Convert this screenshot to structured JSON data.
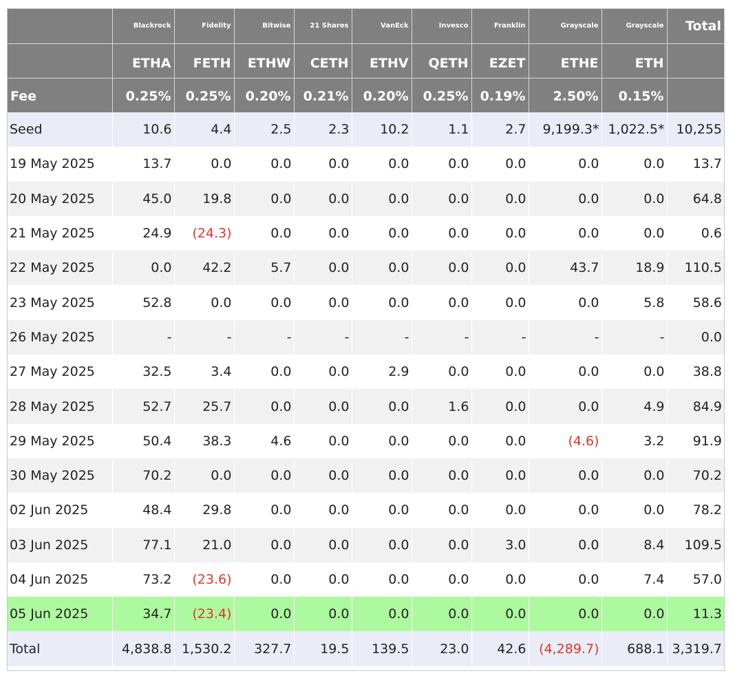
{
  "columns": [
    {
      "provider": "Blackrock",
      "ticker": "ETHA",
      "fee": "0.25%"
    },
    {
      "provider": "Fidelity",
      "ticker": "FETH",
      "fee": "0.25%"
    },
    {
      "provider": "Bitwise",
      "ticker": "ETHW",
      "fee": "0.20%"
    },
    {
      "provider": "21 Shares",
      "ticker": "CETH",
      "fee": "0.21%"
    },
    {
      "provider": "VanEck",
      "ticker": "ETHV",
      "fee": "0.20%"
    },
    {
      "provider": "Invesco",
      "ticker": "QETH",
      "fee": "0.25%"
    },
    {
      "provider": "Franklin",
      "ticker": "EZET",
      "fee": "0.19%"
    },
    {
      "provider": "Grayscale",
      "ticker": "ETHE",
      "fee": "2.50%"
    },
    {
      "provider": "Grayscale",
      "ticker": "ETH",
      "fee": "0.15%"
    }
  ],
  "header": {
    "total_label": "Total",
    "fee_label": "Fee"
  },
  "rows": [
    {
      "label": "Seed",
      "type": "seed",
      "values": [
        "10.6",
        "4.4",
        "2.5",
        "2.3",
        "10.2",
        "1.1",
        "2.7",
        "9,199.3*",
        "1,022.5*"
      ],
      "total": "10,255"
    },
    {
      "label": "19 May 2025",
      "type": "odd",
      "values": [
        "13.7",
        "0.0",
        "0.0",
        "0.0",
        "0.0",
        "0.0",
        "0.0",
        "0.0",
        "0.0"
      ],
      "total": "13.7"
    },
    {
      "label": "20 May 2025",
      "type": "even",
      "values": [
        "45.0",
        "19.8",
        "0.0",
        "0.0",
        "0.0",
        "0.0",
        "0.0",
        "0.0",
        "0.0"
      ],
      "total": "64.8"
    },
    {
      "label": "21 May 2025",
      "type": "odd",
      "values": [
        "24.9",
        "(24.3)",
        "0.0",
        "0.0",
        "0.0",
        "0.0",
        "0.0",
        "0.0",
        "0.0"
      ],
      "total": "0.6"
    },
    {
      "label": "22 May 2025",
      "type": "even",
      "values": [
        "0.0",
        "42.2",
        "5.7",
        "0.0",
        "0.0",
        "0.0",
        "0.0",
        "43.7",
        "18.9"
      ],
      "total": "110.5"
    },
    {
      "label": "23 May 2025",
      "type": "odd",
      "values": [
        "52.8",
        "0.0",
        "0.0",
        "0.0",
        "0.0",
        "0.0",
        "0.0",
        "0.0",
        "5.8"
      ],
      "total": "58.6"
    },
    {
      "label": "26 May 2025",
      "type": "even",
      "values": [
        "-",
        "-",
        "-",
        "-",
        "-",
        "-",
        "-",
        "-",
        "-"
      ],
      "total": "0.0"
    },
    {
      "label": "27 May 2025",
      "type": "odd",
      "values": [
        "32.5",
        "3.4",
        "0.0",
        "0.0",
        "2.9",
        "0.0",
        "0.0",
        "0.0",
        "0.0"
      ],
      "total": "38.8"
    },
    {
      "label": "28 May 2025",
      "type": "even",
      "values": [
        "52.7",
        "25.7",
        "0.0",
        "0.0",
        "0.0",
        "1.6",
        "0.0",
        "0.0",
        "4.9"
      ],
      "total": "84.9"
    },
    {
      "label": "29 May 2025",
      "type": "odd",
      "values": [
        "50.4",
        "38.3",
        "4.6",
        "0.0",
        "0.0",
        "0.0",
        "0.0",
        "(4.6)",
        "3.2"
      ],
      "total": "91.9"
    },
    {
      "label": "30 May 2025",
      "type": "even",
      "values": [
        "70.2",
        "0.0",
        "0.0",
        "0.0",
        "0.0",
        "0.0",
        "0.0",
        "0.0",
        "0.0"
      ],
      "total": "70.2"
    },
    {
      "label": "02 Jun 2025",
      "type": "odd",
      "values": [
        "48.4",
        "29.8",
        "0.0",
        "0.0",
        "0.0",
        "0.0",
        "0.0",
        "0.0",
        "0.0"
      ],
      "total": "78.2"
    },
    {
      "label": "03 Jun 2025",
      "type": "even",
      "values": [
        "77.1",
        "21.0",
        "0.0",
        "0.0",
        "0.0",
        "0.0",
        "3.0",
        "0.0",
        "8.4"
      ],
      "total": "109.5"
    },
    {
      "label": "04 Jun 2025",
      "type": "odd",
      "values": [
        "73.2",
        "(23.6)",
        "0.0",
        "0.0",
        "0.0",
        "0.0",
        "0.0",
        "0.0",
        "7.4"
      ],
      "total": "57.0"
    },
    {
      "label": "05 Jun 2025",
      "type": "latest",
      "values": [
        "34.7",
        "(23.4)",
        "0.0",
        "0.0",
        "0.0",
        "0.0",
        "0.0",
        "0.0",
        "0.0"
      ],
      "total": "11.3"
    },
    {
      "label": "Total",
      "type": "total",
      "values": [
        "4,838.8",
        "1,530.2",
        "327.7",
        "19.5",
        "139.5",
        "23.0",
        "42.6",
        "(4,289.7)",
        "688.1"
      ],
      "total": "3,319.7"
    }
  ],
  "colors": {
    "header_bg": "#808080",
    "negative": "#e0352b",
    "latest_row": "#adf9a0",
    "seed_total_row": "#eaedf7",
    "zebra_row": "#f1f1f1"
  }
}
